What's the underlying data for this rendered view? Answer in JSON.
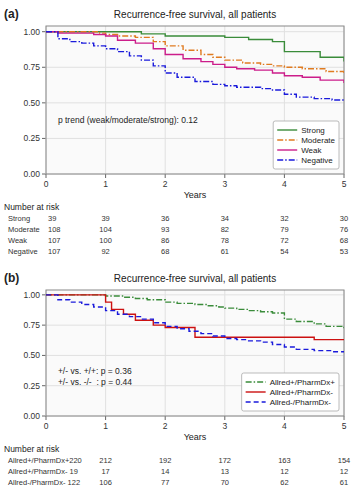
{
  "chart_data": [
    {
      "type": "step",
      "panel_label": "(a)",
      "title": "Recurrence-free survival, all patients",
      "x_label": "Years",
      "xlim": [
        0,
        5
      ],
      "xticks": [
        0,
        1,
        2,
        3,
        4,
        5
      ],
      "ylim": [
        0,
        1.04
      ],
      "yticks": [
        {
          "value": 0,
          "label": "0.00"
        },
        0.25,
        {
          "value": 0.5,
          "label": "0.50"
        },
        0.75,
        {
          "value": 1,
          "label": "1.00"
        }
      ],
      "grid": true,
      "legend": "lower right",
      "annotations": [
        "p trend (weak/moderate/strong): 0.12"
      ],
      "series": [
        {
          "name": "Strong",
          "color": "#3a8c3a",
          "line_style": "solid",
          "x": [
            0,
            0.1,
            0.4,
            0.8,
            1.0,
            1.2,
            1.6,
            2.0,
            2.2,
            2.5,
            2.8,
            3.0,
            3.4,
            3.8,
            4.0,
            4.2,
            4.6,
            5.0
          ],
          "values": [
            1.0,
            1.0,
            1.0,
            1.0,
            1.0,
            1.0,
            0.985,
            0.97,
            0.97,
            0.97,
            0.97,
            0.96,
            0.945,
            0.93,
            0.86,
            0.86,
            0.82,
            0.79
          ]
        },
        {
          "name": "Moderate",
          "color": "#e07b20",
          "line_style": "dashdot",
          "x": [
            0,
            0.3,
            0.6,
            0.9,
            1.0,
            1.2,
            1.5,
            1.8,
            2.0,
            2.3,
            2.6,
            2.8,
            3.0,
            3.3,
            3.6,
            3.8,
            4.0,
            4.3,
            4.7,
            5.0
          ],
          "values": [
            1.0,
            1.0,
            1.0,
            0.99,
            0.98,
            0.97,
            0.96,
            0.93,
            0.9,
            0.87,
            0.84,
            0.82,
            0.8,
            0.78,
            0.77,
            0.76,
            0.75,
            0.74,
            0.72,
            0.71
          ]
        },
        {
          "name": "Weak",
          "color": "#cc1d8a",
          "line_style": "solid",
          "x": [
            0,
            0.2,
            0.5,
            0.8,
            1.0,
            1.2,
            1.5,
            1.8,
            2.0,
            2.3,
            2.6,
            2.8,
            3.0,
            3.2,
            3.5,
            3.8,
            4.0,
            4.3,
            4.6,
            5.0
          ],
          "values": [
            1.0,
            0.99,
            0.99,
            0.98,
            0.97,
            0.94,
            0.92,
            0.88,
            0.84,
            0.81,
            0.79,
            0.77,
            0.75,
            0.74,
            0.73,
            0.71,
            0.69,
            0.68,
            0.66,
            0.64
          ]
        },
        {
          "name": "Negative",
          "color": "#1a1adb",
          "line_style": "dashdot",
          "x": [
            0,
            0.2,
            0.4,
            0.6,
            0.8,
            1.0,
            1.2,
            1.4,
            1.6,
            1.8,
            2.0,
            2.2,
            2.5,
            2.8,
            3.0,
            3.2,
            3.4,
            3.6,
            3.8,
            4.0,
            4.2,
            4.5,
            4.8,
            5.0
          ],
          "values": [
            1.0,
            0.95,
            0.93,
            0.92,
            0.9,
            0.88,
            0.86,
            0.83,
            0.8,
            0.76,
            0.71,
            0.68,
            0.65,
            0.63,
            0.62,
            0.61,
            0.61,
            0.6,
            0.59,
            0.56,
            0.54,
            0.53,
            0.52,
            0.52
          ]
        }
      ],
      "risk_table": {
        "title": "Number at risk",
        "x": [
          0,
          1,
          2,
          3,
          4,
          5
        ],
        "rows": [
          {
            "label": "Strong",
            "values": [
              39,
              39,
              36,
              34,
              32,
              30
            ]
          },
          {
            "label": "Moderate",
            "values": [
              108,
              104,
              93,
              82,
              79,
              76
            ]
          },
          {
            "label": "Weak",
            "values": [
              107,
              100,
              86,
              78,
              72,
              68
            ]
          },
          {
            "label": "Negative",
            "values": [
              107,
              92,
              68,
              61,
              54,
              53
            ]
          }
        ]
      }
    },
    {
      "type": "step",
      "panel_label": "(b)",
      "title": "Recurrence-free survival, all patients",
      "x_label": "Years",
      "xlim": [
        0,
        5
      ],
      "xticks": [
        0,
        1,
        2,
        3,
        4,
        5
      ],
      "ylim": [
        0,
        1.04
      ],
      "yticks": [
        {
          "value": 0,
          "label": "0.00"
        },
        0.25,
        {
          "value": 0.5,
          "label": "0.50"
        },
        0.75,
        {
          "value": 1,
          "label": "1.00"
        }
      ],
      "grid": true,
      "legend": "lower right",
      "annotations": [
        "+/- vs. +/+: p = 0.36",
        "+/- vs. -/-  : p = 0.44"
      ],
      "series": [
        {
          "name": "Allred+/PharmDx+",
          "color": "#3a8c3a",
          "line_style": "dashdot",
          "x": [
            0,
            0.3,
            0.6,
            0.9,
            1.0,
            1.1,
            1.3,
            1.5,
            1.7,
            2.0,
            2.2,
            2.5,
            2.7,
            2.9,
            3.0,
            3.2,
            3.4,
            3.6,
            3.8,
            4.0,
            4.2,
            4.5,
            4.7,
            5.0
          ],
          "values": [
            1.0,
            1.0,
            1.0,
            1.0,
            0.99,
            0.99,
            0.98,
            0.97,
            0.96,
            0.94,
            0.93,
            0.92,
            0.91,
            0.9,
            0.89,
            0.88,
            0.87,
            0.86,
            0.85,
            0.8,
            0.78,
            0.76,
            0.74,
            0.71
          ]
        },
        {
          "name": "Allred+/PharmDx-",
          "color": "#cc1111",
          "line_style": "solid",
          "x": [
            0,
            0.8,
            1.0,
            1.1,
            1.3,
            1.5,
            1.8,
            2.0,
            2.3,
            2.5,
            2.8,
            3.0,
            3.5,
            4.0,
            4.5,
            5.0
          ],
          "values": [
            1.0,
            1.0,
            0.94,
            0.88,
            0.84,
            0.79,
            0.75,
            0.73,
            0.73,
            0.65,
            0.65,
            0.65,
            0.65,
            0.65,
            0.63,
            0.63
          ]
        },
        {
          "name": "Allred-/PharmDx-",
          "color": "#1a1adb",
          "line_style": "dashed",
          "x": [
            0,
            0.2,
            0.4,
            0.6,
            0.8,
            1.0,
            1.2,
            1.4,
            1.6,
            1.8,
            2.0,
            2.2,
            2.4,
            2.6,
            2.8,
            3.0,
            3.2,
            3.4,
            3.6,
            3.8,
            4.0,
            4.2,
            4.5,
            4.8,
            5.0
          ],
          "values": [
            1.0,
            0.96,
            0.94,
            0.92,
            0.9,
            0.87,
            0.84,
            0.82,
            0.8,
            0.77,
            0.74,
            0.72,
            0.7,
            0.68,
            0.66,
            0.64,
            0.63,
            0.62,
            0.61,
            0.59,
            0.57,
            0.55,
            0.54,
            0.53,
            0.53
          ]
        }
      ],
      "risk_table": {
        "title": "Number at risk",
        "x": [
          1,
          2,
          3,
          4,
          5
        ],
        "rows": [
          {
            "label": "Allred+/PharmDx+220",
            "values": [
              212,
              192,
              172,
              163,
              154
            ]
          },
          {
            "label": "Allred+/PharmDx- 19",
            "values": [
              17,
              14,
              13,
              12,
              12
            ]
          },
          {
            "label": "Allred-/PharmDx- 122",
            "values": [
              106,
              77,
              70,
              62,
              61
            ]
          }
        ]
      }
    }
  ]
}
